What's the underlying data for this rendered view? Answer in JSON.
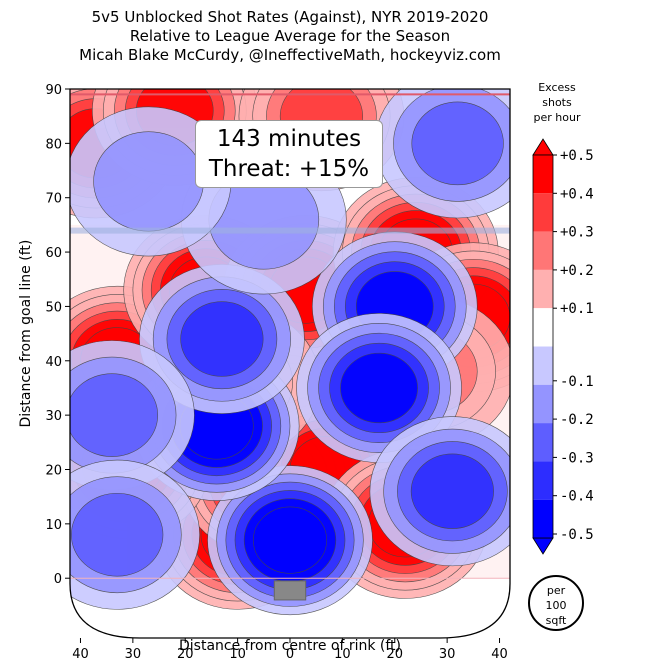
{
  "chart_data": {
    "type": "heatmap",
    "title": "5v5 Unblocked Shot Rates (Against), NYR 2019-2020",
    "subtitle": "Relative to League Average for the Season",
    "credit": "Micah Blake McCurdy, @IneffectiveMath, hockeyviz.com",
    "xlabel": "Distance from centre of rink (ft)",
    "ylabel": "Distance from goal line (ft)",
    "xlim": [
      -42,
      42
    ],
    "ylim": [
      -11,
      90
    ],
    "x_ticks": [
      "40",
      "30",
      "20",
      "10",
      "0",
      "10",
      "20",
      "30",
      "40"
    ],
    "y_ticks": [
      "0",
      "10",
      "20",
      "30",
      "40",
      "50",
      "60",
      "70",
      "80",
      "90"
    ],
    "colorbar": {
      "title": "Excess shots per hour",
      "title_lines": [
        "Excess",
        "shots",
        "per hour"
      ],
      "labels": [
        "+0.5",
        "+0.4",
        "+0.3",
        "+0.2",
        "+0.1",
        "-0.1",
        "-0.2",
        "-0.3",
        "-0.4",
        "-0.5"
      ],
      "colors": [
        "#ff0000",
        "#ff3b3b",
        "#ff7676",
        "#ffb0b0",
        "#ffffff",
        "#c8c8ff",
        "#9494ff",
        "#5e5eff",
        "#2d2dff",
        "#0000ff"
      ]
    },
    "annotation": {
      "minutes": "143 minutes",
      "threat": "Threat: +15%"
    },
    "unit_badge": [
      "per",
      "100",
      "sqft"
    ],
    "hot_spots": [
      {
        "x": -10,
        "y": 8,
        "value": 0.5
      },
      {
        "x": -5,
        "y": 18,
        "value": 0.5
      },
      {
        "x": 7,
        "y": 20,
        "value": 0.5
      },
      {
        "x": 22,
        "y": 10,
        "value": 0.5
      },
      {
        "x": -31,
        "y": 21,
        "value": 0.5
      },
      {
        "x": -33,
        "y": 40,
        "value": 0.5
      },
      {
        "x": -16,
        "y": 53,
        "value": 0.5
      },
      {
        "x": 3,
        "y": 53,
        "value": 0.5
      },
      {
        "x": 24,
        "y": 60,
        "value": 0.5
      },
      {
        "x": 35,
        "y": 48,
        "value": 0.5
      },
      {
        "x": -37,
        "y": 80,
        "value": 0.4
      },
      {
        "x": -22,
        "y": 86,
        "value": 0.4
      },
      {
        "x": 6,
        "y": 85,
        "value": 0.3
      },
      {
        "x": 27,
        "y": 38,
        "value": 0.2
      },
      {
        "x": -10,
        "y": 36,
        "value": 0.1
      },
      {
        "x": 0,
        "y": 7,
        "value": -0.5
      },
      {
        "x": -14,
        "y": 28,
        "value": -0.5
      },
      {
        "x": -13,
        "y": 44,
        "value": -0.3
      },
      {
        "x": 20,
        "y": 50,
        "value": -0.4
      },
      {
        "x": 17,
        "y": 35,
        "value": -0.4
      },
      {
        "x": 31,
        "y": 16,
        "value": -0.3
      },
      {
        "x": -34,
        "y": 30,
        "value": -0.2
      },
      {
        "x": -33,
        "y": 8,
        "value": -0.2
      },
      {
        "x": 32,
        "y": 80,
        "value": -0.2
      },
      {
        "x": -5,
        "y": 66,
        "value": -0.1
      },
      {
        "x": -27,
        "y": 73,
        "value": -0.1
      }
    ]
  }
}
